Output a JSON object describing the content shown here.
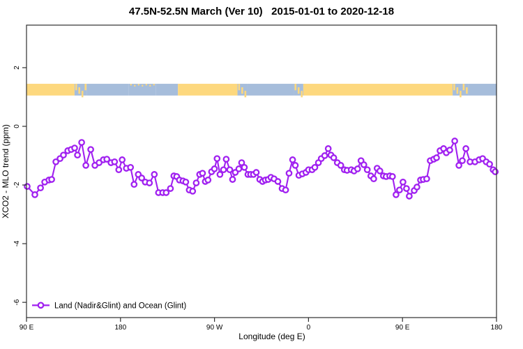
{
  "page": {
    "title": "47.5N-52.5N March (Ver 10)   2015-01-01 to 2020-12-18"
  },
  "colors": {
    "series": "#A020F0",
    "land_band": "#FDD87E",
    "ocean_band": "#A6BDDB",
    "axis": "#2f2f2f",
    "background": "#ffffff"
  },
  "chart_data": {
    "type": "line",
    "title": "47.5N-52.5N March (Ver 10)   2015-01-01 to 2020-12-18",
    "xlabel": "Longitude (deg E)",
    "ylabel": "XCO2 - MLO trend (ppm)",
    "xlim": [
      90,
      540
    ],
    "ylim": [
      -6.52,
      3.45
    ],
    "grid": false,
    "x_ticks": [
      {
        "lon": 90,
        "label": "90 E"
      },
      {
        "lon": 180,
        "label": "180"
      },
      {
        "lon": 270,
        "label": "90 W"
      },
      {
        "lon": 360,
        "label": "0"
      },
      {
        "lon": 450,
        "label": "90 E"
      },
      {
        "lon": 540,
        "label": "180"
      }
    ],
    "y_ticks": [
      {
        "value": 2,
        "label": "2"
      },
      {
        "value": 0,
        "label": "0"
      },
      {
        "value": -2,
        "label": "-2"
      },
      {
        "value": -4,
        "label": "-4"
      },
      {
        "value": -6,
        "label": "-6"
      }
    ],
    "legend": {
      "position": "bottom-left",
      "entries": [
        {
          "label": "Land (Nadir&Glint) and Ocean (Glint)",
          "color": "#A020F0",
          "marker": "open-circle-on-line"
        }
      ]
    },
    "surface_band": {
      "description": "land(yellow)/ocean(blue) strip vs longitude",
      "y_range": [
        1.05,
        1.45
      ],
      "land_color": "#FDD87E",
      "ocean_color": "#A6BDDB",
      "segments": [
        {
          "from": 90,
          "to": 136,
          "surface": "land"
        },
        {
          "from": 136,
          "to": 147.5,
          "surface": "mixed"
        },
        {
          "from": 147.5,
          "to": 188,
          "surface": "ocean"
        },
        {
          "from": 188,
          "to": 214,
          "surface": "ocean_speckled"
        },
        {
          "from": 214,
          "to": 235,
          "surface": "ocean"
        },
        {
          "from": 235,
          "to": 292,
          "surface": "land"
        },
        {
          "from": 292,
          "to": 301,
          "surface": "mixed"
        },
        {
          "from": 301,
          "to": 346,
          "surface": "ocean"
        },
        {
          "from": 346,
          "to": 355,
          "surface": "mixed"
        },
        {
          "from": 355,
          "to": 498,
          "surface": "land"
        },
        {
          "from": 498,
          "to": 513,
          "surface": "mixed"
        },
        {
          "from": 513,
          "to": 540,
          "surface": "ocean"
        }
      ]
    },
    "series": [
      {
        "name": "Land (Nadir&Glint) and Ocean (Glint)",
        "color": "#A020F0",
        "marker": "open-circle",
        "points": [
          [
            90.7,
            -2.05
          ],
          [
            98.0,
            -2.33
          ],
          [
            103.4,
            -2.1
          ],
          [
            107.4,
            -1.9
          ],
          [
            111.4,
            -1.83
          ],
          [
            114.1,
            -1.81
          ],
          [
            118.1,
            -1.21
          ],
          [
            122.1,
            -1.1
          ],
          [
            125.4,
            -0.98
          ],
          [
            129.5,
            -0.83
          ],
          [
            132.8,
            -0.79
          ],
          [
            136.1,
            -0.74
          ],
          [
            138.8,
            -0.98
          ],
          [
            142.8,
            -0.55
          ],
          [
            146.8,
            -1.33
          ],
          [
            151.5,
            -0.79
          ],
          [
            155.5,
            -1.33
          ],
          [
            159.5,
            -1.24
          ],
          [
            163.6,
            -1.14
          ],
          [
            166.9,
            -1.12
          ],
          [
            170.9,
            -1.24
          ],
          [
            174.3,
            -1.21
          ],
          [
            178.3,
            -1.48
          ],
          [
            181.6,
            -1.14
          ],
          [
            185.6,
            -1.43
          ],
          [
            189.6,
            -1.4
          ],
          [
            193.0,
            -1.98
          ],
          [
            197.0,
            -1.64
          ],
          [
            200.3,
            -1.76
          ],
          [
            203.7,
            -1.9
          ],
          [
            207.7,
            -1.93
          ],
          [
            212.4,
            -1.64
          ],
          [
            216.4,
            -2.26
          ],
          [
            220.4,
            -2.26
          ],
          [
            223.7,
            -2.26
          ],
          [
            227.8,
            -2.12
          ],
          [
            231.1,
            -1.69
          ],
          [
            233.8,
            -1.71
          ],
          [
            236.4,
            -1.83
          ],
          [
            239.8,
            -1.86
          ],
          [
            242.5,
            -1.9
          ],
          [
            245.8,
            -2.17
          ],
          [
            249.1,
            -2.21
          ],
          [
            252.5,
            -1.93
          ],
          [
            255.8,
            -1.64
          ],
          [
            258.5,
            -1.6
          ],
          [
            261.2,
            -1.88
          ],
          [
            263.8,
            -1.83
          ],
          [
            267.2,
            -1.55
          ],
          [
            269.9,
            -1.45
          ],
          [
            272.5,
            -1.1
          ],
          [
            275.2,
            -1.64
          ],
          [
            278.6,
            -1.48
          ],
          [
            281.2,
            -1.12
          ],
          [
            284.6,
            -1.48
          ],
          [
            287.3,
            -1.81
          ],
          [
            289.9,
            -1.57
          ],
          [
            293.3,
            -1.45
          ],
          [
            296.0,
            -1.24
          ],
          [
            298.6,
            -1.4
          ],
          [
            302.0,
            -1.64
          ],
          [
            304.6,
            -1.64
          ],
          [
            307.3,
            -1.64
          ],
          [
            310.0,
            -1.57
          ],
          [
            313.3,
            -1.81
          ],
          [
            316.0,
            -1.88
          ],
          [
            318.7,
            -1.83
          ],
          [
            321.4,
            -1.81
          ],
          [
            324.0,
            -1.74
          ],
          [
            327.0,
            -1.79
          ],
          [
            330.7,
            -1.88
          ],
          [
            334.7,
            -2.12
          ],
          [
            338.1,
            -2.17
          ],
          [
            341.4,
            -1.6
          ],
          [
            344.8,
            -1.14
          ],
          [
            347.4,
            -1.33
          ],
          [
            350.8,
            -1.67
          ],
          [
            354.1,
            -1.62
          ],
          [
            357.5,
            -1.57
          ],
          [
            360.1,
            -1.48
          ],
          [
            363.5,
            -1.48
          ],
          [
            366.1,
            -1.4
          ],
          [
            369.5,
            -1.24
          ],
          [
            372.2,
            -1.1
          ],
          [
            375.5,
            -1.0
          ],
          [
            378.9,
            -0.76
          ],
          [
            381.5,
            -0.98
          ],
          [
            384.2,
            -1.07
          ],
          [
            387.6,
            -1.24
          ],
          [
            390.9,
            -1.33
          ],
          [
            394.3,
            -1.48
          ],
          [
            396.9,
            -1.5
          ],
          [
            400.9,
            -1.48
          ],
          [
            403.6,
            -1.52
          ],
          [
            407.0,
            -1.45
          ],
          [
            410.3,
            -1.17
          ],
          [
            413.0,
            -1.31
          ],
          [
            416.3,
            -1.48
          ],
          [
            419.7,
            -1.69
          ],
          [
            422.4,
            -1.79
          ],
          [
            425.7,
            -1.43
          ],
          [
            428.4,
            -1.52
          ],
          [
            431.7,
            -1.69
          ],
          [
            434.4,
            -1.71
          ],
          [
            437.8,
            -1.69
          ],
          [
            440.4,
            -1.71
          ],
          [
            443.8,
            -2.33
          ],
          [
            447.1,
            -2.17
          ],
          [
            450.5,
            -1.9
          ],
          [
            453.8,
            -2.12
          ],
          [
            456.5,
            -2.38
          ],
          [
            461.2,
            -2.19
          ],
          [
            463.8,
            -2.07
          ],
          [
            467.2,
            -1.83
          ],
          [
            469.9,
            -1.81
          ],
          [
            473.2,
            -1.79
          ],
          [
            476.6,
            -1.17
          ],
          [
            479.9,
            -1.12
          ],
          [
            482.6,
            -1.07
          ],
          [
            485.9,
            -0.83
          ],
          [
            489.3,
            -0.76
          ],
          [
            491.9,
            -0.9
          ],
          [
            495.3,
            -0.81
          ],
          [
            500.0,
            -0.5
          ],
          [
            504.0,
            -1.33
          ],
          [
            507.3,
            -1.17
          ],
          [
            510.7,
            -0.76
          ],
          [
            514.7,
            -1.21
          ],
          [
            519.4,
            -1.21
          ],
          [
            523.4,
            -1.14
          ],
          [
            526.7,
            -1.1
          ],
          [
            530.1,
            -1.21
          ],
          [
            533.4,
            -1.29
          ],
          [
            536.8,
            -1.48
          ],
          [
            538.8,
            -1.55
          ]
        ]
      }
    ]
  }
}
